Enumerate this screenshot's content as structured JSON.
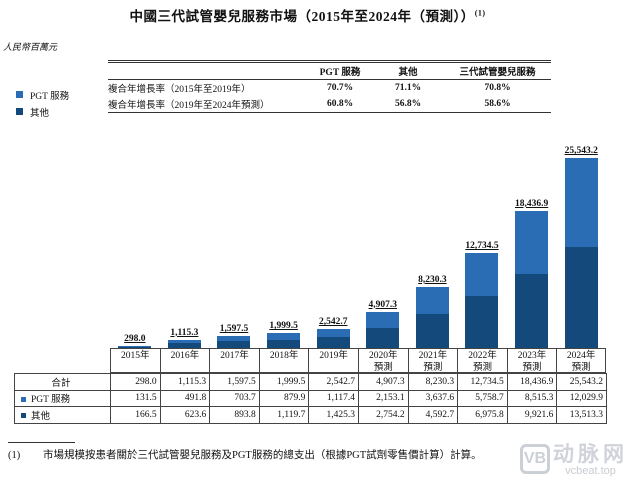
{
  "colors": {
    "pgt": "#2a6db5",
    "other": "#14497b",
    "line": "#444444",
    "watermark_grey": "#c3c7cf"
  },
  "header": {
    "title": "中國三代試管嬰兒服務市場（2015年至2024年（預測））",
    "title_superscript": "(1)",
    "unit_label": "人民幣百萬元"
  },
  "legend": {
    "items": [
      {
        "label": "PGT 服務",
        "color_key": "pgt"
      },
      {
        "label": "其他",
        "color_key": "other"
      }
    ]
  },
  "cagr_table": {
    "col_headers": [
      "PGT 服務",
      "其他",
      "三代試管嬰兒服務"
    ],
    "rows": [
      {
        "label": "複合年增長率（2015年至2019年）",
        "values": [
          "70.7%",
          "71.1%",
          "70.8%"
        ]
      },
      {
        "label": "複合年增長率（2019年至2024年預測）",
        "values": [
          "60.8%",
          "56.8%",
          "58.6%"
        ]
      }
    ]
  },
  "chart_data": {
    "type": "bar",
    "stacked": true,
    "title": "中國三代試管嬰兒服務市場（2015年至2024年（預測））",
    "unit": "人民幣百萬元",
    "grid": false,
    "legend_position": "top-left",
    "categories": [
      "2015年",
      "2016年",
      "2017年",
      "2018年",
      "2019年",
      "2020年預測",
      "2021年預測",
      "2022年預測",
      "2023年預測",
      "2024年預測"
    ],
    "year_axis": [
      {
        "label": "2015年",
        "sub": ""
      },
      {
        "label": "2016年",
        "sub": ""
      },
      {
        "label": "2017年",
        "sub": ""
      },
      {
        "label": "2018年",
        "sub": ""
      },
      {
        "label": "2019年",
        "sub": ""
      },
      {
        "label": "2020年",
        "sub": "預測"
      },
      {
        "label": "2021年",
        "sub": "預測"
      },
      {
        "label": "2022年",
        "sub": "預測"
      },
      {
        "label": "2023年",
        "sub": "預測"
      },
      {
        "label": "2024年",
        "sub": "預測"
      }
    ],
    "series": [
      {
        "name": "PGT 服務",
        "stack_position": "top",
        "color": "#2a6db5",
        "values": [
          131.5,
          491.8,
          703.7,
          879.9,
          1117.4,
          2153.1,
          3637.6,
          5758.7,
          8515.3,
          12029.9
        ]
      },
      {
        "name": "其他",
        "stack_position": "bottom",
        "color": "#14497b",
        "values": [
          166.5,
          623.6,
          893.8,
          1119.7,
          1425.3,
          2754.2,
          4592.7,
          6975.8,
          9921.6,
          13513.3
        ]
      }
    ],
    "totals": [
      298.0,
      1115.3,
      1597.5,
      1999.5,
      2542.7,
      4907.3,
      8230.3,
      12734.5,
      18436.9,
      25543.2
    ],
    "total_labels": [
      "298.0",
      "1,115.3",
      "1,597.5",
      "1,999.5",
      "2,542.7",
      "4,907.3",
      "8,230.3",
      "12,734.5",
      "18,436.9",
      "25,543.2"
    ]
  },
  "summary_table": {
    "rows": [
      {
        "label": "合計",
        "marker": null,
        "values": [
          "298.0",
          "1,115.3",
          "1,597.5",
          "1,999.5",
          "2,542.7",
          "4,907.3",
          "8,230.3",
          "12,734.5",
          "18,436.9",
          "25,543.2"
        ]
      },
      {
        "label": "PGT 服務",
        "marker": "pgt",
        "values": [
          "131.5",
          "491.8",
          "703.7",
          "879.9",
          "1,117.4",
          "2,153.1",
          "3,637.6",
          "5,758.7",
          "8,515.3",
          "12,029.9"
        ]
      },
      {
        "label": "其他",
        "marker": "other",
        "values": [
          "166.5",
          "623.6",
          "893.8",
          "1,119.7",
          "1,425.3",
          "2,754.2",
          "4,592.7",
          "6,975.8",
          "9,921.6",
          "13,513.3"
        ]
      }
    ]
  },
  "footnote": {
    "marker": "(1)",
    "text": "市場規模按患者關於三代試管嬰兒服務及PGT服務的總支出（根據PGT試劑零售價計算）計算。"
  },
  "watermark": {
    "logo_text": "VB",
    "brand": "动脉网",
    "site": "vcbeat.top"
  }
}
